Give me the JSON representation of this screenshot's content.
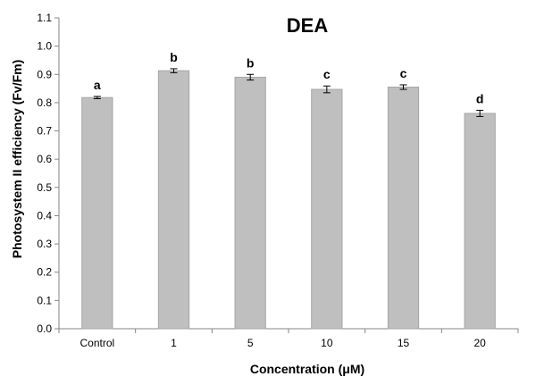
{
  "chart_data": {
    "type": "bar",
    "title": "DEA",
    "xlabel": "Concentration (μM)",
    "ylabel": "Photosystem II efficiency (Fv/Fm)",
    "categories": [
      "Control",
      "1",
      "5",
      "10",
      "15",
      "20"
    ],
    "values": [
      0.818,
      0.913,
      0.89,
      0.847,
      0.855,
      0.762
    ],
    "errors": [
      0.004,
      0.007,
      0.01,
      0.012,
      0.008,
      0.011
    ],
    "significance_letters": [
      "a",
      "b",
      "b",
      "c",
      "c",
      "d"
    ],
    "ylim": [
      0.0,
      1.1
    ],
    "yticks": [
      "0.0",
      "0.1",
      "0.2",
      "0.3",
      "0.4",
      "0.5",
      "0.6",
      "0.7",
      "0.8",
      "0.9",
      "1.0",
      "1.1"
    ],
    "grid": false,
    "legend": "none",
    "colors": {
      "bar_fill": "#bfbfbf",
      "bar_stroke": "#a6a6a6",
      "axis": "#868686",
      "text": "#000000"
    }
  }
}
